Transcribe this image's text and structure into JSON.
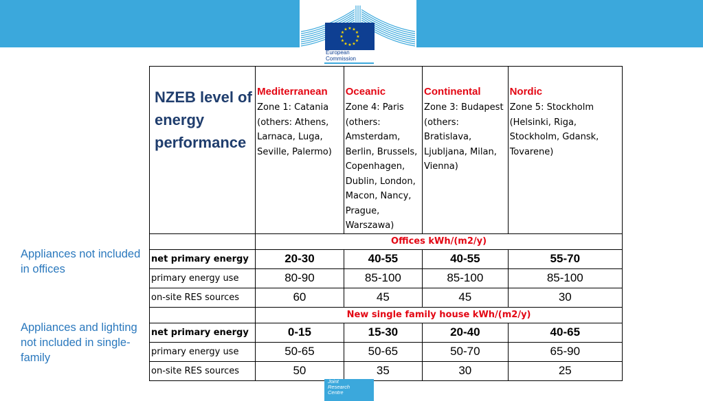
{
  "header": {
    "logo_text_line1": "European",
    "logo_text_line2": "Commission",
    "brand_color": "#3ba8dc"
  },
  "table": {
    "title": "NZEB level of energy performance",
    "zones": [
      {
        "name": "Mediterranean",
        "description": "Zone 1: Catania (others: Athens, Larnaca, Luga, Seville, Palermo)"
      },
      {
        "name": "Oceanic",
        "description": "Zone 4: Paris (others: Amsterdam, Berlin, Brussels, Copenhagen, Dublin, London, Macon, Nancy, Prague, Warszawa)"
      },
      {
        "name": "Continental",
        "description": "Zone 3: Budapest (others: Bratislava, Ljubljana, Milan, Vienna)"
      },
      {
        "name": "Nordic",
        "description": "Zone 5: Stockholm (Helsinki, Riga, Stockholm, Gdansk, Tovarene)"
      }
    ],
    "sections": [
      {
        "title": "Offices kWh/(m2/y)",
        "rows": [
          {
            "label": "net primary energy",
            "values": [
              "20-30",
              "40-55",
              "40-55",
              "55-70"
            ]
          },
          {
            "label": "primary energy use",
            "values": [
              "80-90",
              "85-100",
              "85-100",
              "85-100"
            ]
          },
          {
            "label": "on-site RES sources",
            "values": [
              "60",
              "45",
              "45",
              "30"
            ]
          }
        ]
      },
      {
        "title": "New single family house kWh/(m2/y)",
        "rows": [
          {
            "label": "net primary energy",
            "values": [
              "0-15",
              "15-30",
              "20-40",
              "40-65"
            ]
          },
          {
            "label": "primary energy use",
            "values": [
              "50-65",
              "50-65",
              "50-70",
              "65-90"
            ]
          },
          {
            "label": "on-site RES sources",
            "values": [
              "50",
              "35",
              "30",
              "25"
            ]
          }
        ]
      }
    ]
  },
  "notes": {
    "offices": "Appliances not included in offices",
    "single_family": "Appliances and lighting not included in single-family"
  },
  "footer": {
    "jrc_line1": "Joint",
    "jrc_line2": "Research",
    "jrc_line3": "Centre"
  }
}
